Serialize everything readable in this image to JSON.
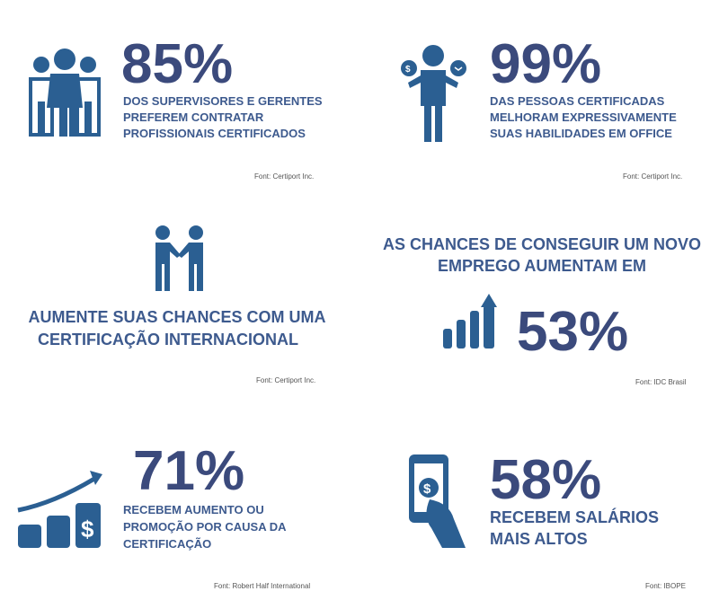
{
  "panels": [
    {
      "stat": "85%",
      "lines": [
        "DOS SUPERVISORES E GERENTES",
        "PREFEREM CONTRATAR",
        "PROFISSIONAIS CERTIFICADOS"
      ],
      "source": "Font: Certiport Inc."
    },
    {
      "stat": "99%",
      "lines": [
        "DAS PESSOAS CERTIFICADAS",
        "MELHORAM EXPRESSIVAMENTE",
        "SUAS HABILIDADES EM OFFICE"
      ],
      "source": "Font: Certiport Inc."
    },
    {
      "lines": [
        "AUMENTE SUAS CHANCES COM UMA",
        "CERTIFICAÇÃO INTERNACIONAL"
      ],
      "source": "Font: Certiport Inc."
    },
    {
      "lines": [
        "AS CHANCES DE CONSEGUIR UM NOVO",
        "EMPREGO AUMENTAM EM"
      ],
      "stat": "53%",
      "source": "Font: IDC Brasil"
    },
    {
      "stat": "71%",
      "lines": [
        "RECEBEM AUMENTO OU",
        "PROMOÇÃO POR CAUSA DA",
        "CERTIFICAÇÃO"
      ],
      "source": "Font: Robert Half International"
    },
    {
      "stat": "58%",
      "lines": [
        "RECEBEM SALÁRIOS",
        "MAIS ALTOS"
      ],
      "source": "Font: IBOPE"
    }
  ]
}
